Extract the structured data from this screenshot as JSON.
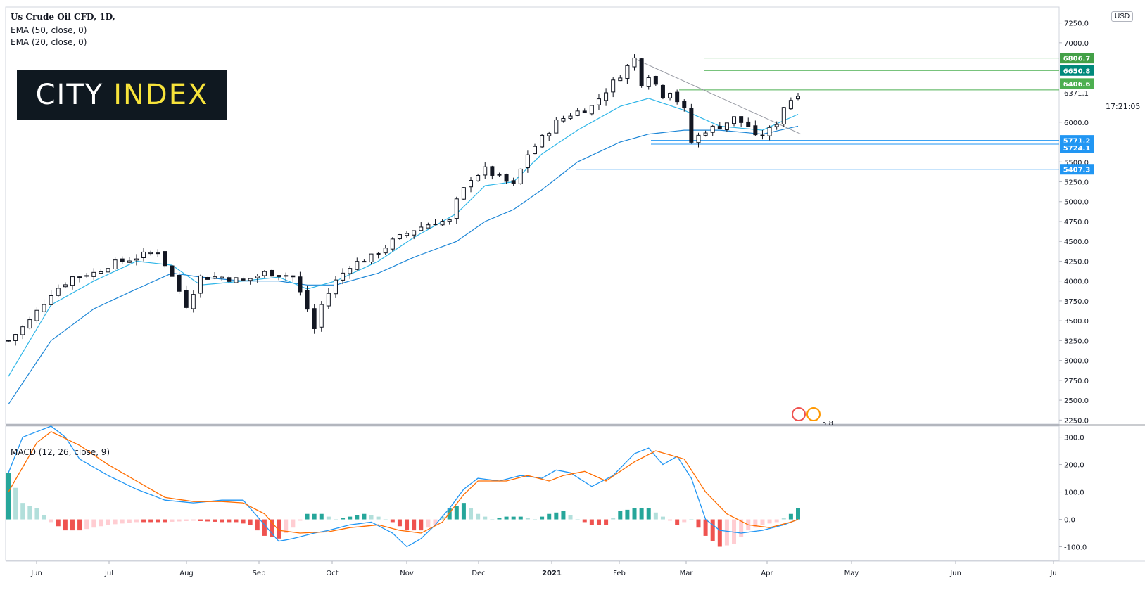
{
  "title": "Us Crude Oil CFD, 1D,",
  "indicators": [
    "EMA (50, close, 0)",
    "EMA (20, close, 0)"
  ],
  "macd_label": "MACD (12, 26, close, 9)",
  "logo": {
    "word1": "CITY",
    "word2": "INDEX",
    "bg": "#0f1820",
    "accent": "#f7e33b"
  },
  "currency": "USD",
  "current_price_label": "6371.1",
  "countdown": "17:21:05",
  "event_counts": [
    "5",
    "8"
  ],
  "colors": {
    "ema20": "#2fb6e8",
    "ema50": "#1d86d6",
    "macd": "#2196f3",
    "signal": "#ff6d00",
    "hist_pos": "#26a69a",
    "hist_pos_light": "#b2dfdb",
    "hist_neg": "#ef5350",
    "hist_neg_light": "#ffcdd2",
    "level_green": "#4caf50",
    "level_blue": "#2196f3"
  },
  "chart_data": [
    {
      "type": "candlestick",
      "y_axis_ticks": [
        "7250.0",
        "7000.0",
        "6000.0",
        "5500.0",
        "5250.0",
        "5000.0",
        "4750.0",
        "4500.0",
        "4250.0",
        "4000.0",
        "3750.0",
        "3500.0",
        "3250.0",
        "3000.0",
        "2750.0",
        "2500.0",
        "2250.0"
      ],
      "x_axis_labels": [
        "Jun",
        "Jul",
        "Aug",
        "Sep",
        "Oct",
        "Nov",
        "Dec",
        "2021",
        "Feb",
        "Mar",
        "Apr",
        "May",
        "Jun",
        "Ju"
      ],
      "ylim": [
        2200,
        7450
      ],
      "resistance_levels": [
        6806.7,
        6650.8,
        6406.6
      ],
      "support_levels": [
        5771.2,
        5724.1,
        5407.3
      ],
      "price_path": [
        [
          0,
          3250
        ],
        [
          3,
          3500
        ],
        [
          6,
          3850
        ],
        [
          9,
          4050
        ],
        [
          12,
          4100
        ],
        [
          14,
          4200
        ],
        [
          16,
          4250
        ],
        [
          18,
          4300
        ],
        [
          21,
          4380
        ],
        [
          23,
          4050
        ],
        [
          25,
          3700
        ],
        [
          27,
          4050
        ],
        [
          30,
          4050
        ],
        [
          33,
          4000
        ],
        [
          36,
          4100
        ],
        [
          38,
          4100
        ],
        [
          40,
          4050
        ],
        [
          42,
          3650
        ],
        [
          43,
          3400
        ],
        [
          44,
          3700
        ],
        [
          46,
          4000
        ],
        [
          48,
          4200
        ],
        [
          51,
          4300
        ],
        [
          54,
          4500
        ],
        [
          57,
          4650
        ],
        [
          60,
          4750
        ],
        [
          62,
          4750
        ],
        [
          63,
          5000
        ],
        [
          65,
          5300
        ],
        [
          67,
          5400
        ],
        [
          69,
          5300
        ],
        [
          71,
          5200
        ],
        [
          73,
          5600
        ],
        [
          75,
          5800
        ],
        [
          77,
          6000
        ],
        [
          79,
          6100
        ],
        [
          82,
          6200
        ],
        [
          84,
          6400
        ],
        [
          86,
          6600
        ],
        [
          88,
          6800
        ],
        [
          89,
          6500
        ],
        [
          90,
          6600
        ],
        [
          92,
          6350
        ],
        [
          93,
          6400
        ],
        [
          95,
          6150
        ],
        [
          96,
          5750
        ],
        [
          98,
          5900
        ],
        [
          100,
          5950
        ],
        [
          102,
          6050
        ],
        [
          104,
          5950
        ],
        [
          105,
          5800
        ],
        [
          107,
          5900
        ],
        [
          108,
          6000
        ],
        [
          109,
          6200
        ],
        [
          111,
          6371.1
        ]
      ],
      "ema20_path": [
        [
          0,
          2800
        ],
        [
          6,
          3700
        ],
        [
          12,
          4000
        ],
        [
          18,
          4250
        ],
        [
          23,
          4200
        ],
        [
          27,
          3950
        ],
        [
          33,
          4000
        ],
        [
          38,
          4050
        ],
        [
          42,
          3900
        ],
        [
          46,
          4000
        ],
        [
          52,
          4250
        ],
        [
          57,
          4550
        ],
        [
          63,
          4850
        ],
        [
          67,
          5200
        ],
        [
          71,
          5250
        ],
        [
          75,
          5600
        ],
        [
          80,
          5900
        ],
        [
          86,
          6200
        ],
        [
          90,
          6300
        ],
        [
          95,
          6150
        ],
        [
          100,
          5950
        ],
        [
          106,
          5900
        ],
        [
          111,
          6100
        ]
      ],
      "ema50_path": [
        [
          0,
          2450
        ],
        [
          6,
          3250
        ],
        [
          12,
          3650
        ],
        [
          18,
          3900
        ],
        [
          23,
          4100
        ],
        [
          27,
          4050
        ],
        [
          33,
          4000
        ],
        [
          38,
          4000
        ],
        [
          42,
          3950
        ],
        [
          46,
          3950
        ],
        [
          52,
          4100
        ],
        [
          57,
          4300
        ],
        [
          63,
          4500
        ],
        [
          67,
          4750
        ],
        [
          71,
          4900
        ],
        [
          75,
          5150
        ],
        [
          80,
          5500
        ],
        [
          86,
          5750
        ],
        [
          90,
          5850
        ],
        [
          95,
          5900
        ],
        [
          100,
          5900
        ],
        [
          106,
          5850
        ],
        [
          111,
          5950
        ]
      ],
      "trendline": [
        [
          88,
          6800
        ],
        [
          111,
          5850
        ]
      ]
    },
    {
      "type": "macd",
      "y_axis_ticks": [
        "300.0",
        "200.0",
        "100.0",
        "0.0",
        "-100.0"
      ],
      "ylim": [
        -150,
        340
      ],
      "macd_path": [
        [
          0,
          170
        ],
        [
          2,
          300
        ],
        [
          4,
          320
        ],
        [
          6,
          340
        ],
        [
          8,
          300
        ],
        [
          10,
          220
        ],
        [
          14,
          160
        ],
        [
          18,
          110
        ],
        [
          22,
          70
        ],
        [
          26,
          60
        ],
        [
          30,
          70
        ],
        [
          33,
          70
        ],
        [
          36,
          -20
        ],
        [
          38,
          -80
        ],
        [
          40,
          -70
        ],
        [
          43,
          -50
        ],
        [
          45,
          -40
        ],
        [
          48,
          -20
        ],
        [
          51,
          -10
        ],
        [
          54,
          -50
        ],
        [
          56,
          -100
        ],
        [
          58,
          -70
        ],
        [
          60,
          -20
        ],
        [
          62,
          40
        ],
        [
          64,
          110
        ],
        [
          66,
          150
        ],
        [
          69,
          140
        ],
        [
          72,
          160
        ],
        [
          75,
          150
        ],
        [
          77,
          180
        ],
        [
          79,
          170
        ],
        [
          82,
          120
        ],
        [
          85,
          160
        ],
        [
          88,
          240
        ],
        [
          90,
          260
        ],
        [
          92,
          200
        ],
        [
          94,
          230
        ],
        [
          96,
          150
        ],
        [
          98,
          0
        ],
        [
          100,
          -40
        ],
        [
          103,
          -50
        ],
        [
          106,
          -40
        ],
        [
          109,
          -20
        ],
        [
          111,
          0
        ]
      ],
      "signal_path": [
        [
          0,
          100
        ],
        [
          4,
          280
        ],
        [
          6,
          320
        ],
        [
          10,
          270
        ],
        [
          14,
          200
        ],
        [
          18,
          140
        ],
        [
          22,
          80
        ],
        [
          26,
          65
        ],
        [
          30,
          65
        ],
        [
          33,
          60
        ],
        [
          36,
          20
        ],
        [
          38,
          -40
        ],
        [
          41,
          -50
        ],
        [
          45,
          -45
        ],
        [
          48,
          -30
        ],
        [
          52,
          -20
        ],
        [
          55,
          -40
        ],
        [
          58,
          -50
        ],
        [
          61,
          -10
        ],
        [
          64,
          90
        ],
        [
          66,
          140
        ],
        [
          70,
          140
        ],
        [
          73,
          160
        ],
        [
          76,
          140
        ],
        [
          78,
          160
        ],
        [
          81,
          175
        ],
        [
          84,
          140
        ],
        [
          88,
          210
        ],
        [
          91,
          250
        ],
        [
          95,
          220
        ],
        [
          98,
          100
        ],
        [
          101,
          20
        ],
        [
          104,
          -20
        ],
        [
          107,
          -30
        ],
        [
          110,
          -10
        ],
        [
          111,
          0
        ]
      ],
      "hist_path": [
        [
          0,
          170
        ],
        [
          2,
          60
        ],
        [
          4,
          40
        ],
        [
          6,
          -10
        ],
        [
          8,
          -40
        ],
        [
          10,
          -40
        ],
        [
          12,
          -30
        ],
        [
          14,
          -20
        ],
        [
          18,
          -10
        ],
        [
          22,
          -10
        ],
        [
          26,
          -5
        ],
        [
          30,
          -10
        ],
        [
          32,
          -10
        ],
        [
          34,
          -20
        ],
        [
          36,
          -60
        ],
        [
          38,
          -70
        ],
        [
          40,
          -30
        ],
        [
          42,
          20
        ],
        [
          44,
          20
        ],
        [
          46,
          0
        ],
        [
          48,
          10
        ],
        [
          50,
          20
        ],
        [
          52,
          10
        ],
        [
          54,
          -10
        ],
        [
          56,
          -40
        ],
        [
          58,
          -40
        ],
        [
          60,
          -20
        ],
        [
          62,
          40
        ],
        [
          64,
          60
        ],
        [
          66,
          20
        ],
        [
          68,
          0
        ],
        [
          70,
          10
        ],
        [
          72,
          10
        ],
        [
          74,
          0
        ],
        [
          76,
          20
        ],
        [
          78,
          30
        ],
        [
          80,
          0
        ],
        [
          82,
          -20
        ],
        [
          84,
          -20
        ],
        [
          86,
          30
        ],
        [
          88,
          40
        ],
        [
          90,
          40
        ],
        [
          92,
          10
        ],
        [
          94,
          -20
        ],
        [
          96,
          0
        ],
        [
          98,
          -60
        ],
        [
          100,
          -100
        ],
        [
          102,
          -90
        ],
        [
          104,
          -40
        ],
        [
          106,
          -20
        ],
        [
          108,
          -10
        ],
        [
          110,
          20
        ],
        [
          111,
          40
        ]
      ]
    }
  ]
}
